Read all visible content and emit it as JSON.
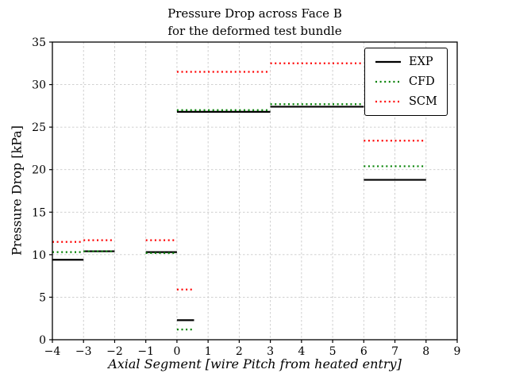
{
  "chart_data": {
    "type": "line",
    "title_line1": "Pressure Drop across Face B",
    "title_line2": "for the deformed test bundle",
    "xlabel": "Axial Segment [wire Pitch from heated entry]",
    "ylabel": "Pressure Drop [kPa]",
    "xlim": [
      -4,
      9
    ],
    "ylim": [
      0,
      35
    ],
    "x_tick_values": [
      -4,
      -3,
      -2,
      -1,
      0,
      1,
      2,
      3,
      4,
      5,
      6,
      7,
      8,
      9
    ],
    "x_ticks": [
      "−4",
      "−3",
      "−2",
      "−1",
      "0",
      "1",
      "2",
      "3",
      "4",
      "5",
      "6",
      "7",
      "8",
      "9"
    ],
    "y_tick_values": [
      0,
      5,
      10,
      15,
      20,
      25,
      30,
      35
    ],
    "y_ticks": [
      "0",
      "5",
      "10",
      "15",
      "20",
      "25",
      "30",
      "35"
    ],
    "grid": true,
    "legend_position": "upper right",
    "series": [
      {
        "name": "EXP",
        "color": "#000000",
        "style": "solid",
        "linewidth": 2.2,
        "segments": [
          {
            "x0": -4,
            "x1": -3,
            "y": 9.4
          },
          {
            "x0": -3,
            "x1": -2,
            "y": 10.4
          },
          {
            "x0": -1,
            "x1": 0,
            "y": 10.3
          },
          {
            "x0": 0,
            "x1": 0.55,
            "y": 2.3
          },
          {
            "x0": 0,
            "x1": 3,
            "y": 26.8
          },
          {
            "x0": 3,
            "x1": 6,
            "y": 27.4
          },
          {
            "x0": 6,
            "x1": 8,
            "y": 18.8
          }
        ]
      },
      {
        "name": "CFD",
        "color": "#008000",
        "style": "dotted",
        "linewidth": 2.2,
        "segments": [
          {
            "x0": -4,
            "x1": -3,
            "y": 10.3
          },
          {
            "x0": -3,
            "x1": -2,
            "y": 10.4
          },
          {
            "x0": -1,
            "x1": 0,
            "y": 10.2
          },
          {
            "x0": 0,
            "x1": 0.55,
            "y": 1.2
          },
          {
            "x0": 0,
            "x1": 3,
            "y": 27.0
          },
          {
            "x0": 3,
            "x1": 6,
            "y": 27.7
          },
          {
            "x0": 6,
            "x1": 8,
            "y": 20.4
          }
        ]
      },
      {
        "name": "SCM",
        "color": "#ff0000",
        "style": "dotted",
        "linewidth": 2.2,
        "segments": [
          {
            "x0": -4,
            "x1": -3,
            "y": 11.5
          },
          {
            "x0": -3,
            "x1": -2,
            "y": 11.7
          },
          {
            "x0": -1,
            "x1": 0,
            "y": 11.7
          },
          {
            "x0": 0,
            "x1": 0.55,
            "y": 5.9
          },
          {
            "x0": 0,
            "x1": 3,
            "y": 31.5
          },
          {
            "x0": 3,
            "x1": 6,
            "y": 32.5
          },
          {
            "x0": 6,
            "x1": 8,
            "y": 23.4
          }
        ]
      }
    ]
  }
}
